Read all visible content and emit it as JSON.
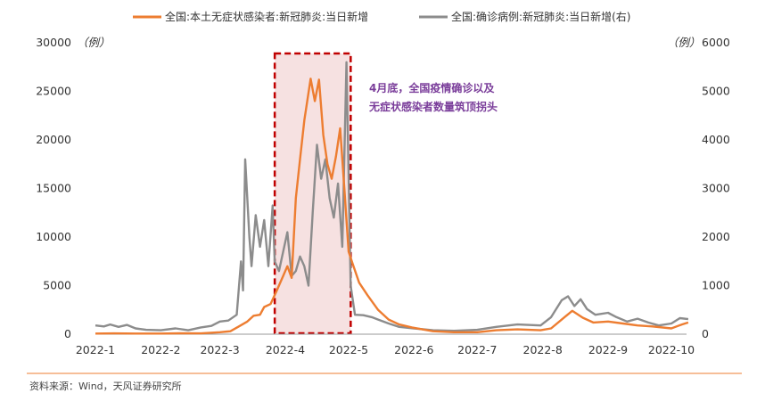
{
  "chart_data": {
    "type": "line",
    "legend_position": "top",
    "grid": false,
    "x_ticks": [
      "2022-1",
      "2022-2",
      "2022-3",
      "2022-4",
      "2022-5",
      "2022-6",
      "2022-7",
      "2022-8",
      "2022-9",
      "2022-10"
    ],
    "y_left": {
      "unit": "（例）",
      "ticks": [
        "30000",
        "25000",
        "20000",
        "15000",
        "10000",
        "5000",
        "0"
      ],
      "range": [
        0,
        30000
      ]
    },
    "y_right": {
      "unit": "（例）",
      "ticks": [
        "6000",
        "5000",
        "4000",
        "3000",
        "2000",
        "1000",
        "0"
      ],
      "range": [
        0,
        6000
      ]
    },
    "series": [
      {
        "name": "全国:本土无症状感染者:新冠肺炎:当日新增",
        "axis": "left",
        "color": "#ED7D31",
        "values": [
          [
            "2022-01-01",
            60
          ],
          [
            "2022-01-10",
            80
          ],
          [
            "2022-01-20",
            60
          ],
          [
            "2022-02-01",
            60
          ],
          [
            "2022-02-10",
            90
          ],
          [
            "2022-02-20",
            80
          ],
          [
            "2022-03-01",
            200
          ],
          [
            "2022-03-06",
            300
          ],
          [
            "2022-03-10",
            800
          ],
          [
            "2022-03-14",
            1300
          ],
          [
            "2022-03-17",
            1900
          ],
          [
            "2022-03-20",
            2000
          ],
          [
            "2022-03-22",
            2800
          ],
          [
            "2022-03-25",
            3100
          ],
          [
            "2022-03-28",
            4500
          ],
          [
            "2022-03-31",
            6000
          ],
          [
            "2022-04-02",
            7000
          ],
          [
            "2022-04-04",
            5800
          ],
          [
            "2022-04-06",
            14000
          ],
          [
            "2022-04-08",
            18000
          ],
          [
            "2022-04-10",
            22000
          ],
          [
            "2022-04-13",
            26300
          ],
          [
            "2022-04-15",
            24000
          ],
          [
            "2022-04-17",
            26200
          ],
          [
            "2022-04-19",
            20500
          ],
          [
            "2022-04-21",
            17500
          ],
          [
            "2022-04-23",
            16000
          ],
          [
            "2022-04-25",
            18300
          ],
          [
            "2022-04-27",
            21200
          ],
          [
            "2022-04-29",
            15000
          ],
          [
            "2022-05-01",
            8500
          ],
          [
            "2022-05-03",
            7200
          ],
          [
            "2022-05-06",
            5300
          ],
          [
            "2022-05-10",
            4000
          ],
          [
            "2022-05-15",
            2500
          ],
          [
            "2022-05-20",
            1500
          ],
          [
            "2022-05-25",
            1000
          ],
          [
            "2022-05-31",
            700
          ],
          [
            "2022-06-10",
            300
          ],
          [
            "2022-06-20",
            200
          ],
          [
            "2022-07-01",
            200
          ],
          [
            "2022-07-10",
            400
          ],
          [
            "2022-07-20",
            500
          ],
          [
            "2022-07-31",
            400
          ],
          [
            "2022-08-05",
            600
          ],
          [
            "2022-08-10",
            1500
          ],
          [
            "2022-08-15",
            2400
          ],
          [
            "2022-08-20",
            1700
          ],
          [
            "2022-08-25",
            1200
          ],
          [
            "2022-09-01",
            1300
          ],
          [
            "2022-09-08",
            1100
          ],
          [
            "2022-09-15",
            900
          ],
          [
            "2022-09-22",
            800
          ],
          [
            "2022-10-01",
            600
          ],
          [
            "2022-10-06",
            1000
          ],
          [
            "2022-10-09",
            1200
          ]
        ]
      },
      {
        "name": "全国:确诊病例:新冠肺炎:当日新增(右)",
        "axis": "right",
        "color": "#8C8C8C",
        "values": [
          [
            "2022-01-01",
            180
          ],
          [
            "2022-01-05",
            160
          ],
          [
            "2022-01-08",
            200
          ],
          [
            "2022-01-12",
            150
          ],
          [
            "2022-01-16",
            190
          ],
          [
            "2022-01-20",
            120
          ],
          [
            "2022-01-25",
            90
          ],
          [
            "2022-02-01",
            80
          ],
          [
            "2022-02-08",
            120
          ],
          [
            "2022-02-14",
            80
          ],
          [
            "2022-02-20",
            140
          ],
          [
            "2022-02-25",
            170
          ],
          [
            "2022-03-01",
            260
          ],
          [
            "2022-03-05",
            280
          ],
          [
            "2022-03-09",
            400
          ],
          [
            "2022-03-11",
            1500
          ],
          [
            "2022-03-12",
            900
          ],
          [
            "2022-03-13",
            3600
          ],
          [
            "2022-03-15",
            2000
          ],
          [
            "2022-03-16",
            1400
          ],
          [
            "2022-03-18",
            2450
          ],
          [
            "2022-03-20",
            1800
          ],
          [
            "2022-03-22",
            2350
          ],
          [
            "2022-03-24",
            1400
          ],
          [
            "2022-03-26",
            2650
          ],
          [
            "2022-03-27",
            1500
          ],
          [
            "2022-03-29",
            1300
          ],
          [
            "2022-03-31",
            1700
          ],
          [
            "2022-04-02",
            2100
          ],
          [
            "2022-04-04",
            1200
          ],
          [
            "2022-04-06",
            1300
          ],
          [
            "2022-04-08",
            1600
          ],
          [
            "2022-04-10",
            1400
          ],
          [
            "2022-04-12",
            1000
          ],
          [
            "2022-04-14",
            2500
          ],
          [
            "2022-04-16",
            3900
          ],
          [
            "2022-04-18",
            3200
          ],
          [
            "2022-04-20",
            3600
          ],
          [
            "2022-04-22",
            2800
          ],
          [
            "2022-04-24",
            2400
          ],
          [
            "2022-04-26",
            3100
          ],
          [
            "2022-04-28",
            1800
          ],
          [
            "2022-04-30",
            5600
          ],
          [
            "2022-05-02",
            1000
          ],
          [
            "2022-05-04",
            400
          ],
          [
            "2022-05-08",
            390
          ],
          [
            "2022-05-12",
            350
          ],
          [
            "2022-05-15",
            300
          ],
          [
            "2022-05-20",
            220
          ],
          [
            "2022-05-25",
            150
          ],
          [
            "2022-06-01",
            120
          ],
          [
            "2022-06-10",
            80
          ],
          [
            "2022-06-20",
            70
          ],
          [
            "2022-07-01",
            90
          ],
          [
            "2022-07-10",
            150
          ],
          [
            "2022-07-20",
            200
          ],
          [
            "2022-07-31",
            180
          ],
          [
            "2022-08-05",
            350
          ],
          [
            "2022-08-10",
            700
          ],
          [
            "2022-08-13",
            780
          ],
          [
            "2022-08-16",
            580
          ],
          [
            "2022-08-19",
            720
          ],
          [
            "2022-08-22",
            520
          ],
          [
            "2022-08-26",
            400
          ],
          [
            "2022-09-01",
            440
          ],
          [
            "2022-09-05",
            350
          ],
          [
            "2022-09-10",
            260
          ],
          [
            "2022-09-15",
            320
          ],
          [
            "2022-09-20",
            240
          ],
          [
            "2022-09-25",
            180
          ],
          [
            "2022-10-01",
            220
          ],
          [
            "2022-10-05",
            330
          ],
          [
            "2022-10-09",
            310
          ]
        ]
      }
    ],
    "highlight": {
      "x_start": "2022-03-27",
      "x_end": "2022-05-02",
      "fill": "#F6E1E1",
      "stroke": "#C00000"
    },
    "annotation": [
      "4月底，全国疫情确诊以及",
      "无症状感染者数量筑顶拐头"
    ],
    "source": "资料来源：Wind，天风证券研究所"
  }
}
